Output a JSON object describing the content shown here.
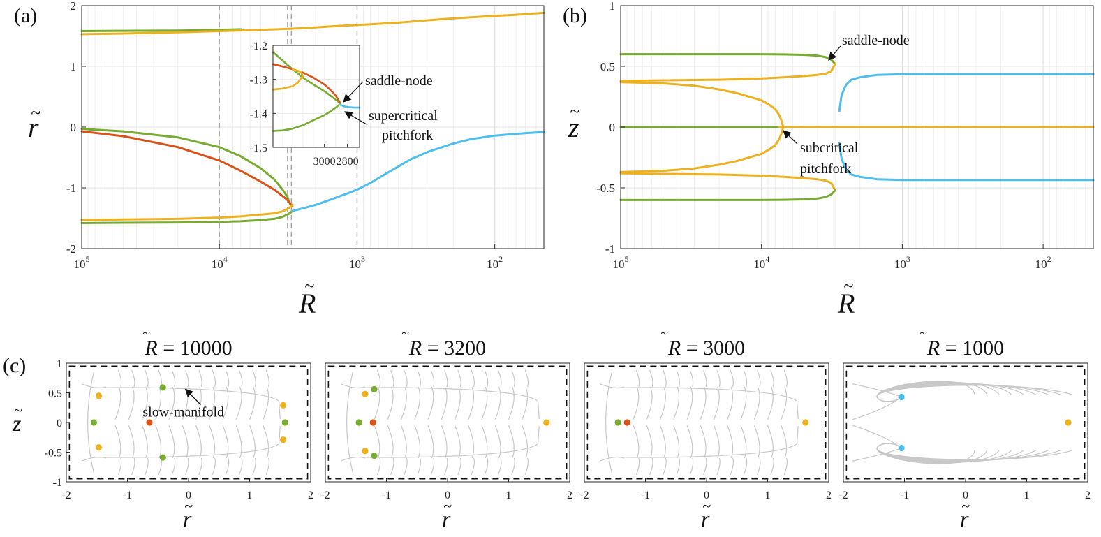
{
  "figure": {
    "panel_labels": [
      "(a)",
      "(b)",
      "(c)"
    ],
    "tilde": "~"
  },
  "chart_data": [
    {
      "id": "a",
      "type": "line",
      "panel_label": "(a)",
      "xlabel": "R",
      "ylabel": "r",
      "xscale": "log-reversed",
      "xlim": [
        100000,
        44
      ],
      "ylim": [
        -2,
        2
      ],
      "xticks": [
        100000,
        10000,
        1000,
        100
      ],
      "xtick_labels": [
        {
          "base": "10",
          "exp": "5"
        },
        {
          "base": "10",
          "exp": "4"
        },
        {
          "base": "10",
          "exp": "3"
        },
        {
          "base": "10",
          "exp": "2"
        }
      ],
      "yticks": [
        -2,
        -1,
        0,
        1,
        2
      ],
      "ytick_labels": [
        "-2",
        "-1",
        "0",
        "1",
        "2"
      ],
      "vlines": [
        10000,
        3200,
        3000,
        1000
      ],
      "colors": {
        "green": "#77AC30",
        "orange": "#EDB120",
        "red": "#D95319",
        "blue": "#4DBEEE",
        "grid": "#e6e6e6",
        "vline": "#a0a0a0"
      },
      "series": [
        {
          "name": "green-upper",
          "color": "green",
          "x": [
            100000,
            50000,
            20000,
            10000,
            7000
          ],
          "y": [
            1.58,
            1.585,
            1.59,
            1.6,
            1.61
          ]
        },
        {
          "name": "orange-upper",
          "color": "orange",
          "x": [
            100000,
            50000,
            20000,
            10000,
            5000,
            3000,
            2000,
            1500,
            1000,
            700,
            500,
            300,
            200,
            100,
            70,
            44
          ],
          "y": [
            1.53,
            1.54,
            1.56,
            1.58,
            1.6,
            1.62,
            1.64,
            1.66,
            1.68,
            1.7,
            1.72,
            1.76,
            1.79,
            1.83,
            1.85,
            1.88
          ]
        },
        {
          "name": "green-upper-ext",
          "color": "green",
          "x": [
            100000,
            50000,
            20000,
            10000,
            7000,
            5000,
            4000,
            3500,
            3200,
            3050
          ],
          "y": [
            -0.03,
            -0.07,
            -0.17,
            -0.33,
            -0.48,
            -0.68,
            -0.86,
            -1.02,
            -1.15,
            -1.28
          ]
        },
        {
          "name": "red",
          "color": "red",
          "x": [
            100000,
            50000,
            20000,
            10000,
            7000,
            5000,
            4000,
            3500,
            3200,
            3050,
            2950
          ],
          "y": [
            -0.07,
            -0.15,
            -0.33,
            -0.55,
            -0.72,
            -0.9,
            -1.03,
            -1.13,
            -1.2,
            -1.26,
            -1.3
          ]
        },
        {
          "name": "orange-lower",
          "color": "orange",
          "x": [
            100000,
            50000,
            20000,
            10000,
            7000,
            5000,
            4000,
            3500,
            3200,
            3050,
            2950
          ],
          "y": [
            -1.53,
            -1.52,
            -1.51,
            -1.49,
            -1.47,
            -1.44,
            -1.42,
            -1.39,
            -1.35,
            -1.31,
            -1.28
          ]
        },
        {
          "name": "green-lower",
          "color": "green",
          "x": [
            100000,
            50000,
            20000,
            10000,
            7000,
            5000,
            4000,
            3500,
            3200,
            3050,
            2950
          ],
          "y": [
            -1.58,
            -1.575,
            -1.57,
            -1.56,
            -1.55,
            -1.53,
            -1.51,
            -1.48,
            -1.44,
            -1.41,
            -1.38
          ]
        },
        {
          "name": "blue",
          "color": "blue",
          "x": [
            2950,
            2500,
            2000,
            1500,
            1200,
            1000,
            800,
            600,
            400,
            300,
            200,
            150,
            100,
            70,
            44
          ],
          "y": [
            -1.38,
            -1.34,
            -1.28,
            -1.18,
            -1.1,
            -1.03,
            -0.92,
            -0.75,
            -0.52,
            -0.4,
            -0.27,
            -0.2,
            -0.14,
            -0.11,
            -0.08
          ]
        }
      ],
      "inset": {
        "xscale": "log-reversed",
        "xlim": [
          3500,
          2700
        ],
        "ylim": [
          -1.5,
          -1.2
        ],
        "xticks": [
          3000,
          2800
        ],
        "xtick_labels": [
          "3000",
          "2800"
        ],
        "yticks": [
          -1.2,
          -1.3,
          -1.4,
          -1.5
        ],
        "ytick_labels": [
          "-1.2",
          "-1.3",
          "-1.4",
          "-1.5"
        ],
        "series": [
          {
            "name": "green-up",
            "color": "green",
            "x": [
              3500,
              3400,
              3300,
              3200,
              3100,
              3000,
              2950,
              2900,
              2860
            ],
            "y": [
              -1.22,
              -1.245,
              -1.27,
              -1.295,
              -1.315,
              -1.335,
              -1.347,
              -1.36,
              -1.37
            ]
          },
          {
            "name": "red",
            "color": "red",
            "x": [
              3500,
              3400,
              3300,
              3200,
              3100,
              3000,
              2950,
              2900,
              2860
            ],
            "y": [
              -1.255,
              -1.262,
              -1.27,
              -1.28,
              -1.295,
              -1.315,
              -1.33,
              -1.348,
              -1.37
            ]
          },
          {
            "name": "orange",
            "color": "orange",
            "x": [
              3500,
              3400,
              3300,
              3250,
              3200,
              3220,
              3300
            ],
            "y": [
              -1.33,
              -1.327,
              -1.32,
              -1.31,
              -1.29,
              -1.278,
              -1.27
            ]
          },
          {
            "name": "green-low",
            "color": "green",
            "x": [
              3500,
              3400,
              3300,
              3200,
              3100,
              3000,
              2950,
              2900,
              2860
            ],
            "y": [
              -1.452,
              -1.45,
              -1.445,
              -1.435,
              -1.42,
              -1.405,
              -1.395,
              -1.383,
              -1.372
            ]
          },
          {
            "name": "blue",
            "color": "blue",
            "x": [
              2860,
              2820,
              2780,
              2740,
              2700
            ],
            "y": [
              -1.375,
              -1.38,
              -1.382,
              -1.383,
              -1.383
            ]
          }
        ],
        "annotations": [
          "saddle-node",
          "supercritical",
          "pitchfork"
        ]
      }
    },
    {
      "id": "b",
      "type": "line",
      "panel_label": "(b)",
      "xlabel": "R",
      "ylabel": "z",
      "xscale": "log-reversed",
      "xlim": [
        100000,
        44
      ],
      "ylim": [
        -1,
        1
      ],
      "xticks": [
        100000,
        10000,
        1000,
        100
      ],
      "xtick_labels": [
        {
          "base": "10",
          "exp": "5"
        },
        {
          "base": "10",
          "exp": "4"
        },
        {
          "base": "10",
          "exp": "3"
        },
        {
          "base": "10",
          "exp": "2"
        }
      ],
      "yticks": [
        -1,
        -0.5,
        0,
        0.5,
        1
      ],
      "ytick_labels": [
        "-1",
        "-0.5",
        "0",
        "0.5",
        "1"
      ],
      "series": [
        {
          "name": "green-top",
          "color": "green",
          "x": [
            100000,
            50000,
            20000,
            10000,
            7000,
            5000,
            4000,
            3500,
            3200,
            3000
          ],
          "y": [
            0.6,
            0.6,
            0.6,
            0.6,
            0.598,
            0.595,
            0.588,
            0.575,
            0.555,
            0.52
          ]
        },
        {
          "name": "orange-top",
          "color": "orange",
          "x": [
            100000,
            50000,
            20000,
            10000,
            7000,
            5000,
            4000,
            3500,
            3200,
            3000
          ],
          "y": [
            0.38,
            0.385,
            0.39,
            0.4,
            0.41,
            0.42,
            0.43,
            0.44,
            0.46,
            0.52
          ]
        },
        {
          "name": "orange-mid-up",
          "color": "orange",
          "x": [
            100000,
            50000,
            30000,
            20000,
            15000,
            10000,
            9000,
            8000,
            7500,
            7200,
            7000
          ],
          "y": [
            0.37,
            0.36,
            0.34,
            0.31,
            0.28,
            0.22,
            0.19,
            0.15,
            0.1,
            0.05,
            0.0
          ]
        },
        {
          "name": "green-zero",
          "color": "green",
          "x": [
            100000,
            50000,
            20000,
            10000,
            7500
          ],
          "y": [
            0,
            0,
            0,
            0,
            0
          ]
        },
        {
          "name": "orange-zero",
          "color": "orange",
          "x": [
            7500,
            5000,
            3000,
            1000,
            500,
            100,
            44
          ],
          "y": [
            0,
            0,
            0,
            0,
            0,
            0,
            0
          ]
        },
        {
          "name": "orange-mid-down",
          "color": "orange",
          "x": [
            100000,
            50000,
            30000,
            20000,
            15000,
            10000,
            9000,
            8000,
            7500,
            7200,
            7000
          ],
          "y": [
            -0.37,
            -0.36,
            -0.34,
            -0.31,
            -0.28,
            -0.22,
            -0.19,
            -0.15,
            -0.1,
            -0.05,
            0.0
          ]
        },
        {
          "name": "orange-bottom",
          "color": "orange",
          "x": [
            100000,
            50000,
            20000,
            10000,
            7000,
            5000,
            4000,
            3500,
            3200,
            3000
          ],
          "y": [
            -0.38,
            -0.385,
            -0.39,
            -0.4,
            -0.41,
            -0.42,
            -0.43,
            -0.44,
            -0.46,
            -0.52
          ]
        },
        {
          "name": "green-bottom",
          "color": "green",
          "x": [
            100000,
            50000,
            20000,
            10000,
            7000,
            5000,
            4000,
            3500,
            3200,
            3000
          ],
          "y": [
            -0.6,
            -0.6,
            -0.6,
            -0.6,
            -0.598,
            -0.595,
            -0.588,
            -0.575,
            -0.555,
            -0.52
          ]
        },
        {
          "name": "blue-top",
          "color": "blue",
          "x": [
            2800,
            2750,
            2700,
            2600,
            2500,
            2300,
            2000,
            1500,
            1000,
            500,
            100,
            44
          ],
          "y": [
            0.13,
            0.2,
            0.26,
            0.31,
            0.35,
            0.39,
            0.41,
            0.43,
            0.435,
            0.435,
            0.435,
            0.435
          ]
        },
        {
          "name": "blue-bottom",
          "color": "blue",
          "x": [
            2800,
            2750,
            2700,
            2600,
            2500,
            2300,
            2000,
            1500,
            1000,
            500,
            100,
            44
          ],
          "y": [
            -0.13,
            -0.2,
            -0.26,
            -0.31,
            -0.35,
            -0.39,
            -0.41,
            -0.43,
            -0.435,
            -0.435,
            -0.435,
            -0.435
          ]
        }
      ],
      "annotations": [
        "saddle-node",
        "subcritical",
        "pitchfork"
      ]
    },
    {
      "id": "c",
      "type": "scatter",
      "panel_label": "(c)",
      "xlabel": "r",
      "ylabel": "z",
      "xlim": [
        -2,
        2
      ],
      "ylim": [
        -1,
        1
      ],
      "xticks": [
        -2,
        -1,
        0,
        1,
        2
      ],
      "xtick_labels": [
        "-2",
        "-1",
        "0",
        "1",
        "2"
      ],
      "yticks": [
        -1,
        -0.5,
        0,
        0.5,
        1
      ],
      "ytick_labels": [
        "-1",
        "-0.5",
        "0",
        "0.5",
        "1"
      ],
      "subplots": [
        {
          "title_value": "10000",
          "fixed_points": [
            {
              "r": -1.55,
              "z": 0,
              "color": "green"
            },
            {
              "r": -1.47,
              "z": 0.45,
              "color": "orange"
            },
            {
              "r": -1.47,
              "z": -0.42,
              "color": "orange"
            },
            {
              "r": -0.64,
              "z": 0,
              "color": "red"
            },
            {
              "r": -0.42,
              "z": 0.59,
              "color": "green"
            },
            {
              "r": -0.42,
              "z": -0.59,
              "color": "green"
            },
            {
              "r": 1.55,
              "z": 0.29,
              "color": "orange"
            },
            {
              "r": 1.58,
              "z": 0,
              "color": "green"
            },
            {
              "r": 1.55,
              "z": -0.29,
              "color": "orange"
            }
          ],
          "annotation": "slow-manifold"
        },
        {
          "title_value": "3200",
          "fixed_points": [
            {
              "r": -1.45,
              "z": 0,
              "color": "green"
            },
            {
              "r": -1.35,
              "z": 0.48,
              "color": "orange"
            },
            {
              "r": -1.35,
              "z": -0.48,
              "color": "orange"
            },
            {
              "r": -1.22,
              "z": 0,
              "color": "red"
            },
            {
              "r": -1.2,
              "z": 0.56,
              "color": "green"
            },
            {
              "r": -1.2,
              "z": -0.56,
              "color": "green"
            },
            {
              "r": 1.62,
              "z": 0,
              "color": "orange"
            }
          ]
        },
        {
          "title_value": "3000",
          "fixed_points": [
            {
              "r": -1.45,
              "z": 0,
              "color": "green"
            },
            {
              "r": -1.3,
              "z": 0,
              "color": "red"
            },
            {
              "r": 1.62,
              "z": 0,
              "color": "orange"
            }
          ]
        },
        {
          "title_value": "1000",
          "fixed_points": [
            {
              "r": -1.05,
              "z": 0.43,
              "color": "blue"
            },
            {
              "r": -1.05,
              "z": -0.43,
              "color": "blue"
            },
            {
              "r": 1.68,
              "z": 0,
              "color": "orange"
            }
          ]
        }
      ]
    }
  ]
}
